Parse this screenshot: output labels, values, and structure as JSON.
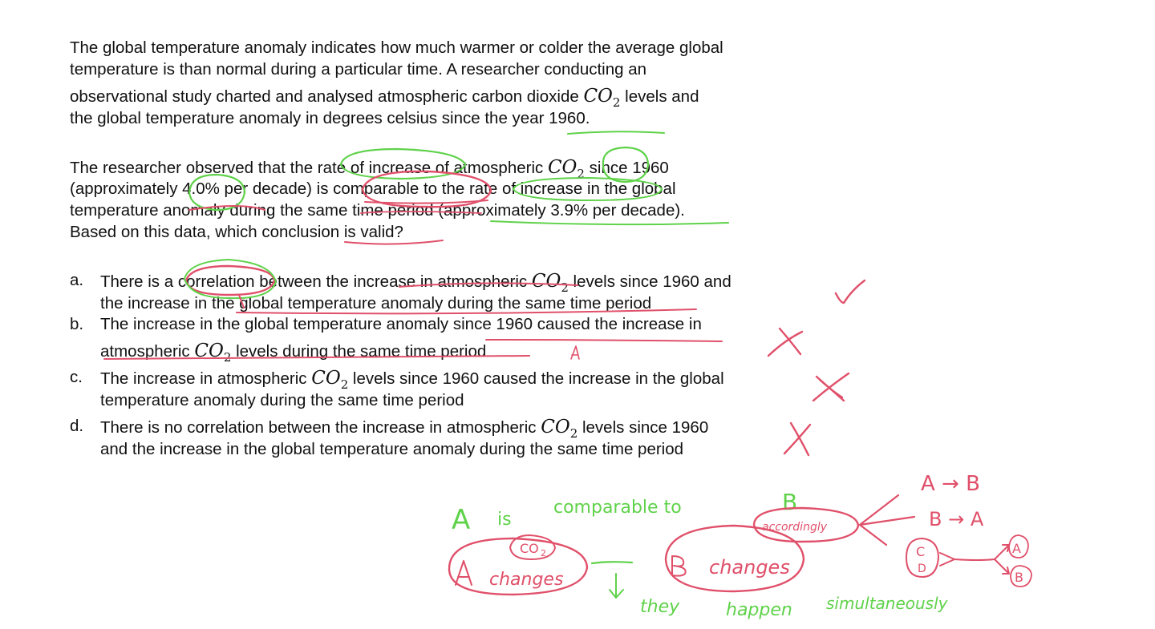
{
  "problem": {
    "paragraph1": [
      "The global temperature anomaly indicates how much warmer or colder the average global",
      "temperature is than normal during a particular time. A researcher conducting an",
      [
        "observational study charted and analysed atmospheric carbon dioxide ",
        " levels and"
      ],
      "the global temperature anomaly in degrees celsius since the year 1960."
    ],
    "paragraph2": [
      [
        "The researcher observed that the rate of increase of atmospheric ",
        " since 1960"
      ],
      "(approximately 4.0% per decade) is comparable to the rate of increase in the global",
      "temperature anomaly during the same time period (approximately 3.9% per decade).",
      "Based on this data, which conclusion is valid?"
    ],
    "co2_symbol": "CO",
    "co2_subscript": "2"
  },
  "options": [
    {
      "letter": "a.",
      "lines": [
        [
          "There is a correlation between the increase in atmospheric ",
          " levels since 1960 and"
        ],
        "the increase in the global temperature anomaly during the same time period"
      ]
    },
    {
      "letter": "b.",
      "lines": [
        "The increase in the global temperature anomaly since 1960 caused the increase in",
        [
          "atmospheric ",
          " levels during the same time period"
        ]
      ]
    },
    {
      "letter": "c.",
      "lines": [
        [
          "The increase in atmospheric ",
          " levels since 1960 caused the increase in the global"
        ],
        "temperature anomaly during the same time period"
      ]
    },
    {
      "letter": "d.",
      "lines": [
        [
          "There is no correlation between the increase in atmospheric ",
          " levels since 1960"
        ],
        "and the increase in the global temperature anomaly during the same time period"
      ]
    }
  ],
  "handwriting": {
    "colors": {
      "green": "#5fd24a",
      "red": "#e0506a"
    },
    "green_notes": {
      "A": "A",
      "is": "is",
      "comparable_to": "comparable  to",
      "B": "B",
      "changes_left": "changes",
      "changes_right": "changes",
      "they": "they",
      "happen": "happen",
      "simultaneously": "simultaneously",
      "C": "C",
      "D": "D",
      "A_small": "A",
      "B_small": "B"
    },
    "red_notes": {
      "co2": "CO",
      "co2_sub": "2",
      "accordingly": "accordingly",
      "A_to_B": "A → B",
      "B_to_A": "B → A",
      "check_mark": "check-mark",
      "cross_b": "cross",
      "cross_c": "cross",
      "cross_d": "cross"
    }
  }
}
